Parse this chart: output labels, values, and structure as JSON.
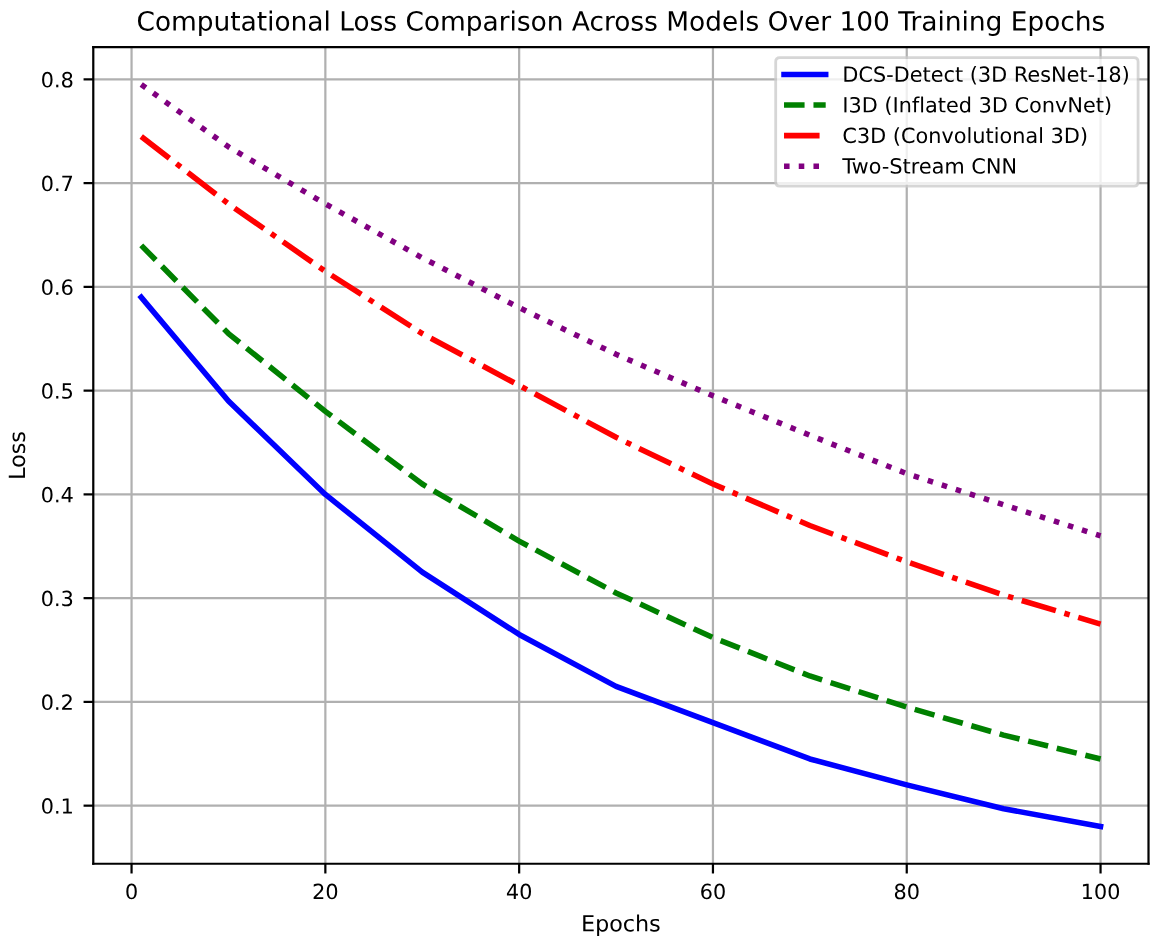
{
  "chart_data": {
    "type": "line",
    "title": "Computational Loss Comparison Across Models Over 100 Training Epochs",
    "xlabel": "Epochs",
    "ylabel": "Loss",
    "x": [
      1,
      10,
      20,
      30,
      40,
      50,
      60,
      70,
      80,
      90,
      100
    ],
    "series": [
      {
        "name": "DCS-Detect (3D ResNet-18)",
        "color": "#0000ff",
        "line_style": "solid",
        "values": [
          0.59,
          0.49,
          0.4,
          0.325,
          0.265,
          0.215,
          0.18,
          0.145,
          0.12,
          0.097,
          0.08
        ]
      },
      {
        "name": "I3D (Inflated 3D ConvNet)",
        "color": "#008000",
        "line_style": "dashed",
        "values": [
          0.64,
          0.555,
          0.48,
          0.41,
          0.355,
          0.305,
          0.262,
          0.225,
          0.195,
          0.168,
          0.145
        ]
      },
      {
        "name": "C3D (Convolutional 3D)",
        "color": "#ff0000",
        "line_style": "dashdot",
        "values": [
          0.745,
          0.68,
          0.615,
          0.555,
          0.505,
          0.455,
          0.41,
          0.37,
          0.335,
          0.303,
          0.275
        ]
      },
      {
        "name": "Two-Stream CNN",
        "color": "#800080",
        "line_style": "dotted",
        "values": [
          0.795,
          0.735,
          0.68,
          0.628,
          0.58,
          0.535,
          0.495,
          0.457,
          0.42,
          0.39,
          0.36
        ]
      }
    ],
    "xlim": [
      -3.95,
      104.95
    ],
    "ylim": [
      0.044,
      0.831
    ],
    "xticks": [
      0,
      20,
      40,
      60,
      80,
      100
    ],
    "yticks": [
      0.1,
      0.2,
      0.3,
      0.4,
      0.5,
      0.6,
      0.7,
      0.8
    ],
    "grid": true,
    "legend": "top right",
    "marker": "none"
  }
}
